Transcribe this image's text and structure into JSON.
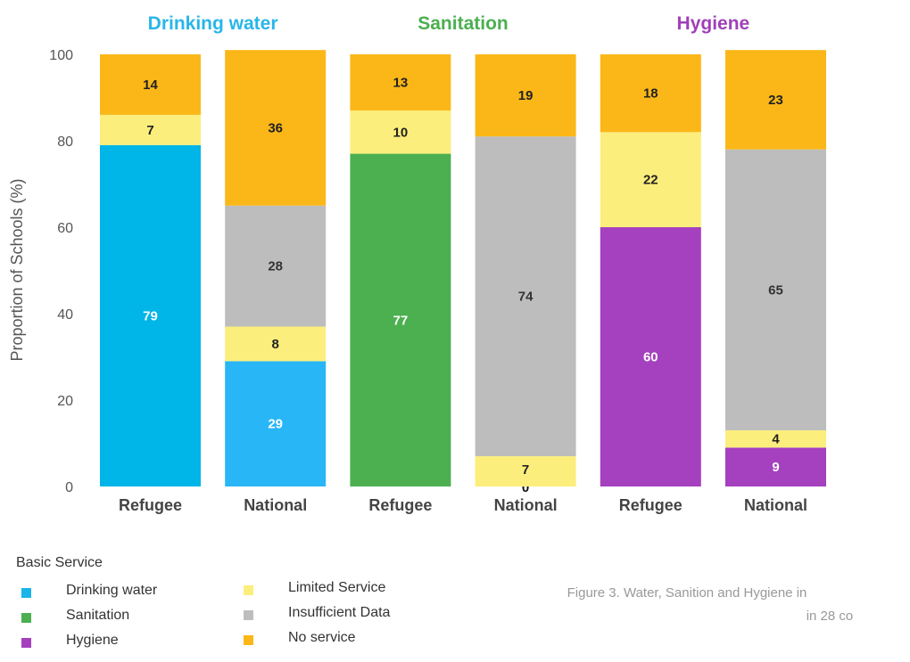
{
  "chart_data": {
    "type": "bar",
    "stacked": true,
    "ylabel": "Proportion of Schools (%)",
    "ylim": [
      0,
      100
    ],
    "yticks": [
      0,
      20,
      40,
      60,
      80,
      100
    ],
    "grid": false,
    "groups": [
      {
        "name": "Drinking water",
        "color": "#29B6E8"
      },
      {
        "name": "Sanitation",
        "color": "#4CAF50"
      },
      {
        "name": "Hygiene",
        "color": "#A040B8"
      }
    ],
    "bars": [
      {
        "category": "Refugee",
        "group": "Drinking water",
        "segments": [
          {
            "series": "Basic Service",
            "value": 79,
            "label": "79",
            "color": "#00B5E8"
          },
          {
            "series": "Limited Service",
            "value": 7,
            "label": "7",
            "color": "#FCEE7C"
          },
          {
            "series": "No service",
            "value": 14,
            "label": "14",
            "color": "#FBB718"
          }
        ]
      },
      {
        "category": "National",
        "group": "Drinking water",
        "segments": [
          {
            "series": "Basic Service",
            "value": 29,
            "label": "29",
            "color": "#29B6F6"
          },
          {
            "series": "Limited Service",
            "value": 8,
            "label": "8",
            "color": "#FCEE7C"
          },
          {
            "series": "Insufficient Data",
            "value": 28,
            "label": "28",
            "color": "#BDBDBD"
          },
          {
            "series": "No service",
            "value": 36,
            "label": "36",
            "color": "#FBB718"
          }
        ]
      },
      {
        "category": "Refugee",
        "group": "Sanitation",
        "segments": [
          {
            "series": "Basic Service",
            "value": 77,
            "label": "77",
            "color": "#4CB050"
          },
          {
            "series": "Limited Service",
            "value": 10,
            "label": "10",
            "color": "#FCEE7C"
          },
          {
            "series": "No service",
            "value": 13,
            "label": "13",
            "color": "#FBB718"
          }
        ]
      },
      {
        "category": "National",
        "group": "Sanitation",
        "segments": [
          {
            "series": "Basic Service",
            "value": 0,
            "label": "0",
            "color": "#4CB050"
          },
          {
            "series": "Limited Service",
            "value": 7,
            "label": "7",
            "color": "#FCEE7C"
          },
          {
            "series": "Insufficient Data",
            "value": 74,
            "label": "74",
            "color": "#BDBDBD"
          },
          {
            "series": "No service",
            "value": 19,
            "label": "19",
            "color": "#FBB718"
          }
        ]
      },
      {
        "category": "Refugee",
        "group": "Hygiene",
        "segments": [
          {
            "series": "Basic Service",
            "value": 60,
            "label": "60",
            "color": "#A540BF"
          },
          {
            "series": "Limited Service",
            "value": 22,
            "label": "22",
            "color": "#FCEE7C"
          },
          {
            "series": "No service",
            "value": 18,
            "label": "18",
            "color": "#FBB718"
          }
        ]
      },
      {
        "category": "National",
        "group": "Hygiene",
        "segments": [
          {
            "series": "Basic Service",
            "value": 9,
            "label": "9",
            "color": "#A540BF"
          },
          {
            "series": "Limited Service",
            "value": 4,
            "label": "4",
            "color": "#FCEE7C"
          },
          {
            "series": "Insufficient Data",
            "value": 65,
            "label": "65",
            "color": "#BDBDBD"
          },
          {
            "series": "No service",
            "value": 23,
            "label": "23",
            "color": "#FBB718"
          }
        ]
      }
    ]
  },
  "legend": {
    "heading": "Basic Service",
    "col1": [
      {
        "label": "Drinking water",
        "color": "#1BB4E8"
      },
      {
        "label": "Sanitation",
        "color": "#4CB050"
      },
      {
        "label": "Hygiene",
        "color": "#A540BF"
      }
    ],
    "col2": [
      {
        "label": "Limited Service",
        "color": "#FCEE7C"
      },
      {
        "label": "Insufficient Data",
        "color": "#BDBDBD"
      },
      {
        "label": "No service",
        "color": "#FBB718"
      }
    ]
  },
  "caption": {
    "line1": "Figure 3. Water, Sanition and Hygiene in",
    "line2": "in 28 co"
  }
}
